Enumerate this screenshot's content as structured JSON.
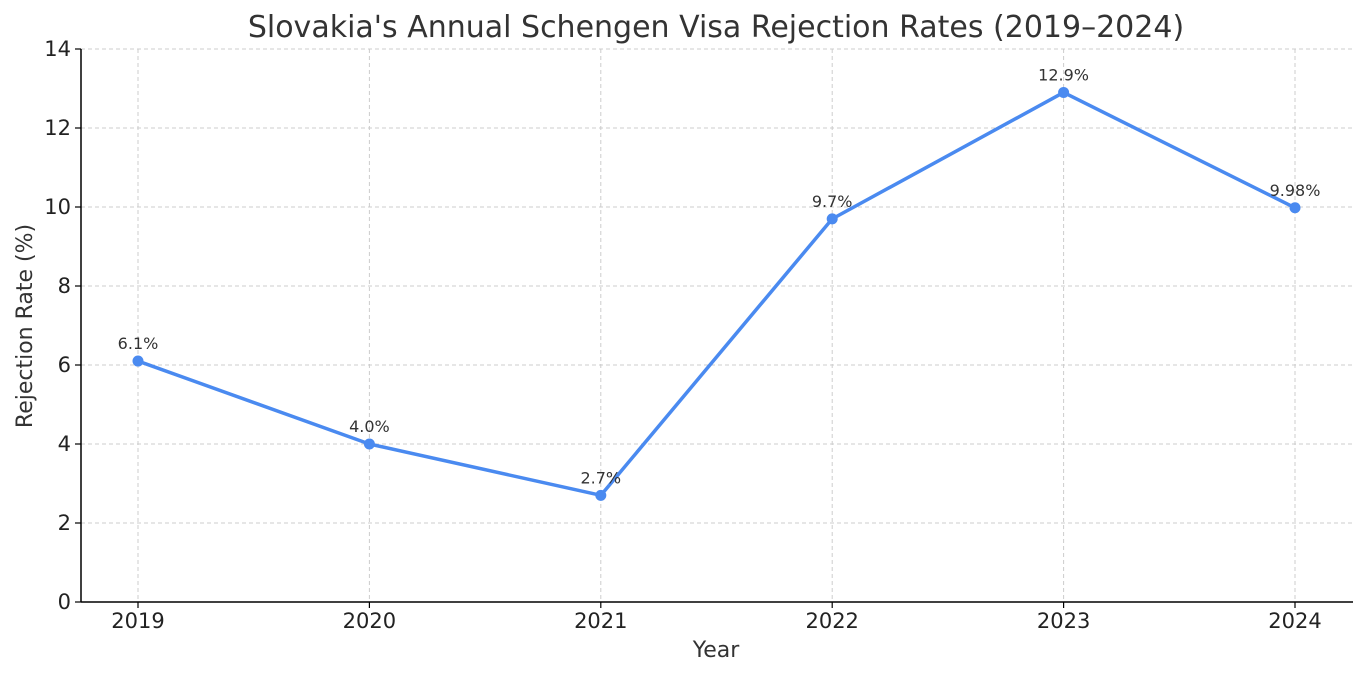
{
  "chart_data": {
    "type": "line",
    "title": "Slovakia's Annual Schengen Visa Rejection Rates (2019–2024)",
    "xlabel": "Year",
    "ylabel": "Rejection Rate (%)",
    "categories": [
      "2019",
      "2020",
      "2021",
      "2022",
      "2023",
      "2024"
    ],
    "values": [
      6.1,
      4.0,
      2.7,
      9.7,
      12.9,
      9.98
    ],
    "data_labels": [
      "6.1%",
      "4.0%",
      "2.7%",
      "9.7%",
      "12.9%",
      "9.98%"
    ],
    "ylim": [
      0,
      14
    ],
    "yticks": [
      0,
      2,
      4,
      6,
      8,
      10,
      12,
      14
    ],
    "grid": true,
    "line_color": "#4a8af0"
  }
}
